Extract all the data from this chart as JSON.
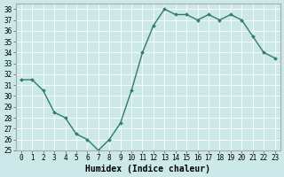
{
  "x": [
    0,
    1,
    2,
    3,
    4,
    5,
    6,
    7,
    8,
    9,
    10,
    11,
    12,
    13,
    14,
    15,
    16,
    17,
    18,
    19,
    20,
    21,
    22,
    23
  ],
  "y": [
    31.5,
    31.5,
    30.5,
    28.5,
    28.0,
    26.5,
    26.0,
    25.0,
    26.0,
    27.5,
    30.5,
    34.0,
    36.5,
    38.0,
    37.5,
    37.5,
    37.0,
    37.5,
    37.0,
    37.5,
    37.0,
    35.5,
    34.0,
    33.5
  ],
  "line_color": "#2e7d6e",
  "marker": "D",
  "marker_size": 2.0,
  "bg_color": "#cce8e8",
  "grid_color": "#ffffff",
  "xlabel": "Humidex (Indice chaleur)",
  "xlim": [
    -0.5,
    23.5
  ],
  "ylim": [
    25,
    38.5
  ],
  "yticks": [
    25,
    26,
    27,
    28,
    29,
    30,
    31,
    32,
    33,
    34,
    35,
    36,
    37,
    38
  ],
  "xticks": [
    0,
    1,
    2,
    3,
    4,
    5,
    6,
    7,
    8,
    9,
    10,
    11,
    12,
    13,
    14,
    15,
    16,
    17,
    18,
    19,
    20,
    21,
    22,
    23
  ],
  "tick_fontsize": 5.5,
  "xlabel_fontsize": 7.0,
  "linewidth": 1.0
}
